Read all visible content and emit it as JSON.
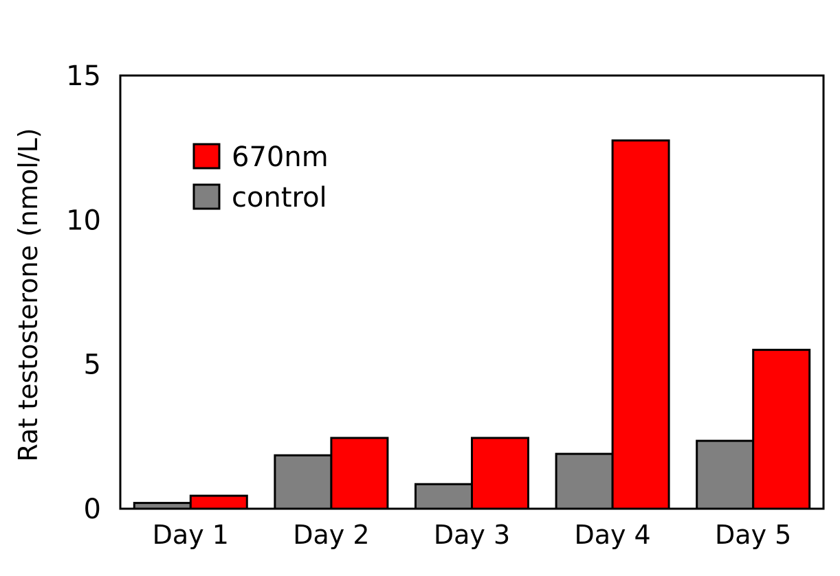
{
  "chart_data": {
    "type": "bar",
    "title": "",
    "xlabel": "",
    "ylabel": "Rat testosterone (nmol/L)",
    "ylim": [
      0,
      15
    ],
    "yticks": [
      "0",
      "5",
      "10",
      "15"
    ],
    "categories": [
      "Day 1",
      "Day 2",
      "Day 3",
      "Day 4",
      "Day 5"
    ],
    "series": [
      {
        "name": "control",
        "color": "#808080",
        "values": [
          0.2,
          1.85,
          0.85,
          1.9,
          2.35
        ]
      },
      {
        "name": "670nm",
        "color": "#ff0000",
        "values": [
          0.45,
          2.45,
          2.45,
          12.75,
          5.5
        ]
      }
    ],
    "legend_position": "top-left",
    "grid": false
  }
}
